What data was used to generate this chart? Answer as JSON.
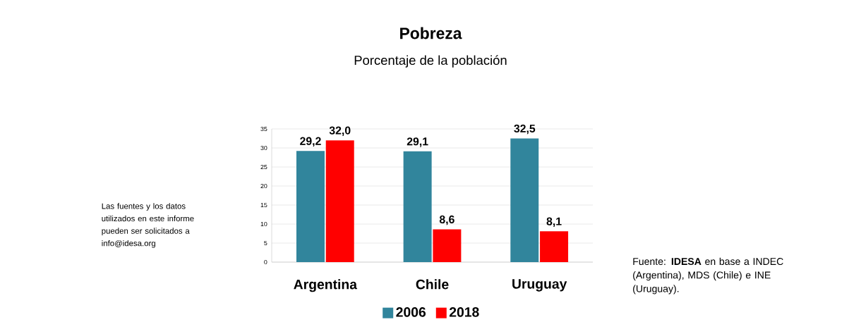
{
  "chart_data": {
    "type": "bar",
    "title": "Pobreza",
    "subtitle": "Porcentaje de la población",
    "categories": [
      "Argentina",
      "Chile",
      "Uruguay"
    ],
    "series": [
      {
        "name": "2006",
        "color": "#31859c",
        "values": [
          29.2,
          29.1,
          32.5
        ],
        "value_labels": [
          "29,2",
          "29,1",
          "32,5"
        ]
      },
      {
        "name": "2018",
        "color": "#ff0000",
        "values": [
          32.0,
          8.6,
          8.1
        ],
        "value_labels": [
          "32,0",
          "8,6",
          "8,1"
        ]
      }
    ],
    "ylim": [
      0,
      35
    ],
    "yticks": [
      0,
      5,
      10,
      15,
      20,
      25,
      30,
      35
    ],
    "grid": "y",
    "legend": "bottom",
    "annotations": [
      "Las fuentes y los datos utilizados en este informe pueden ser solicitados a info@idesa.org",
      "Fuente: **IDESA** en base a INDEC (Argentina), MDS (Chile) e INE (Uruguay)."
    ]
  }
}
